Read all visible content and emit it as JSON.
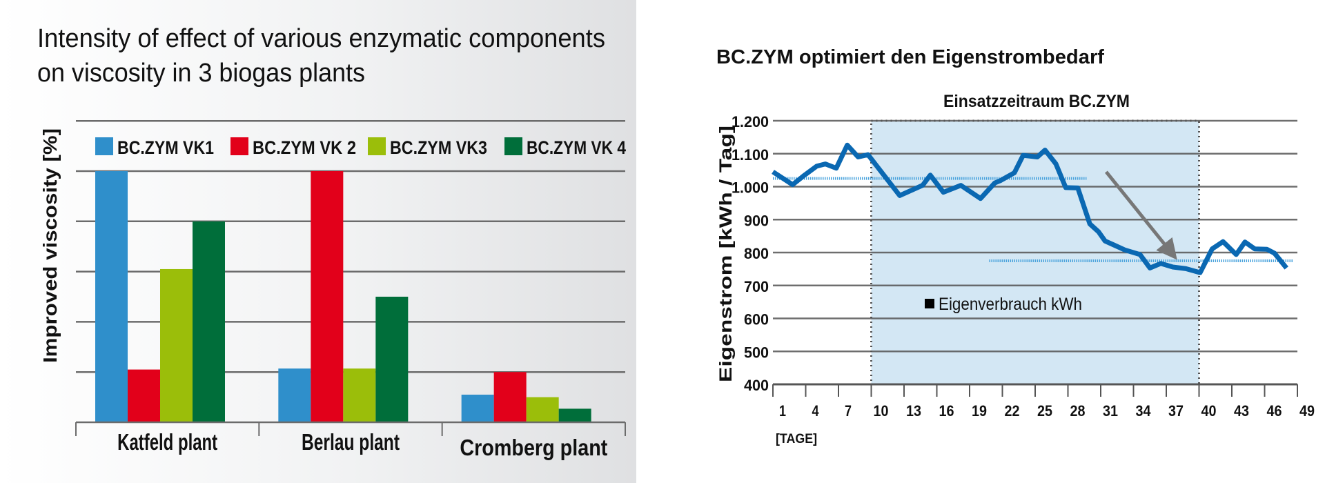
{
  "colors": {
    "vk1": "#2f8fcb",
    "vk2": "#e2001a",
    "vk3": "#9bbe0a",
    "vk4": "#006e3a",
    "line": "#0a68b2",
    "avg": "#4aa3dc",
    "shade": "#d3e7f4",
    "arrow": "#777777"
  },
  "chart_data": [
    {
      "type": "bar",
      "title_lines": [
        "Intensity of effect of various enzymatic components",
        "on viscosity in 3 biogas plants"
      ],
      "xlabel": "",
      "ylabel": "Improved viscosity [%]",
      "categories": [
        "Katfeld plant",
        "Berlau plant",
        "Cromberg plant"
      ],
      "series": [
        {
          "name": "BC.ZYM VK1",
          "values": [
            5.0,
            1.07,
            0.55
          ]
        },
        {
          "name": "BC.ZYM VK 2",
          "values": [
            1.05,
            5.0,
            1.0
          ]
        },
        {
          "name": "BC.ZYM VK3",
          "values": [
            3.05,
            1.07,
            0.5
          ]
        },
        {
          "name": "BC.ZYM VK 4",
          "values": [
            4.0,
            2.5,
            0.27
          ]
        }
      ],
      "ylim": [
        0,
        6
      ],
      "grid": true,
      "y_tick_labels_shown": false,
      "legend_placement": "top"
    },
    {
      "type": "line",
      "title": "BC.ZYM optimiert den Eigenstrombedarf",
      "xlabel": "[TAGE]",
      "ylabel": "Eigenstrom [kWh / Tag]",
      "xlim": [
        1,
        49
      ],
      "ylim": [
        400,
        1200
      ],
      "x_ticks": [
        "1",
        "4",
        "7",
        "10",
        "13",
        "16",
        "19",
        "22",
        "25",
        "28",
        "31",
        "34",
        "37",
        "40",
        "43",
        "46",
        "49"
      ],
      "y_ticks": [
        "1.200",
        "1.100",
        "1.000",
        "900",
        "800",
        "700",
        "600",
        "500",
        "400"
      ],
      "grid": true,
      "series": [
        {
          "name": "Eigenverbrauch kWh",
          "x": [
            1,
            2.8,
            3.9,
            5,
            5.8,
            6.8,
            7.8,
            8.8,
            9.7,
            12.6,
            14.7,
            15.4,
            16.6,
            18.2,
            20,
            21.3,
            21.8,
            23.1,
            23.9,
            25.2,
            25.9,
            26.9,
            27.8,
            28.9,
            30,
            30.8,
            31.4,
            32.2,
            33.2,
            34.6,
            35.5,
            36.5,
            37.6,
            38.8,
            40.1,
            41.2,
            42.2,
            43.4,
            44.2,
            45.1,
            46.2,
            46.9,
            48
          ],
          "y": [
            1045,
            1006,
            1035,
            1062,
            1069,
            1056,
            1126,
            1090,
            1097,
            973,
            1004,
            1035,
            983,
            1004,
            964,
            1011,
            1018,
            1042,
            1095,
            1090,
            1111,
            1069,
            997,
            996,
            887,
            863,
            835,
            823,
            808,
            794,
            753,
            767,
            756,
            751,
            739,
            811,
            833,
            794,
            832,
            811,
            810,
            798,
            753
          ]
        }
      ],
      "average_lines": [
        {
          "x": [
            1,
            29.7
          ],
          "y": 1025
        },
        {
          "x": [
            20.8,
            48.6
          ],
          "y": 775
        }
      ],
      "highlight_region": {
        "label": "Einsatzzeitraum BC.ZYM",
        "x": [
          10,
          40
        ]
      },
      "arrow": {
        "from": [
          31.5,
          1045
        ],
        "to": [
          37.6,
          794
        ]
      },
      "legend_placement": "center-left"
    }
  ]
}
